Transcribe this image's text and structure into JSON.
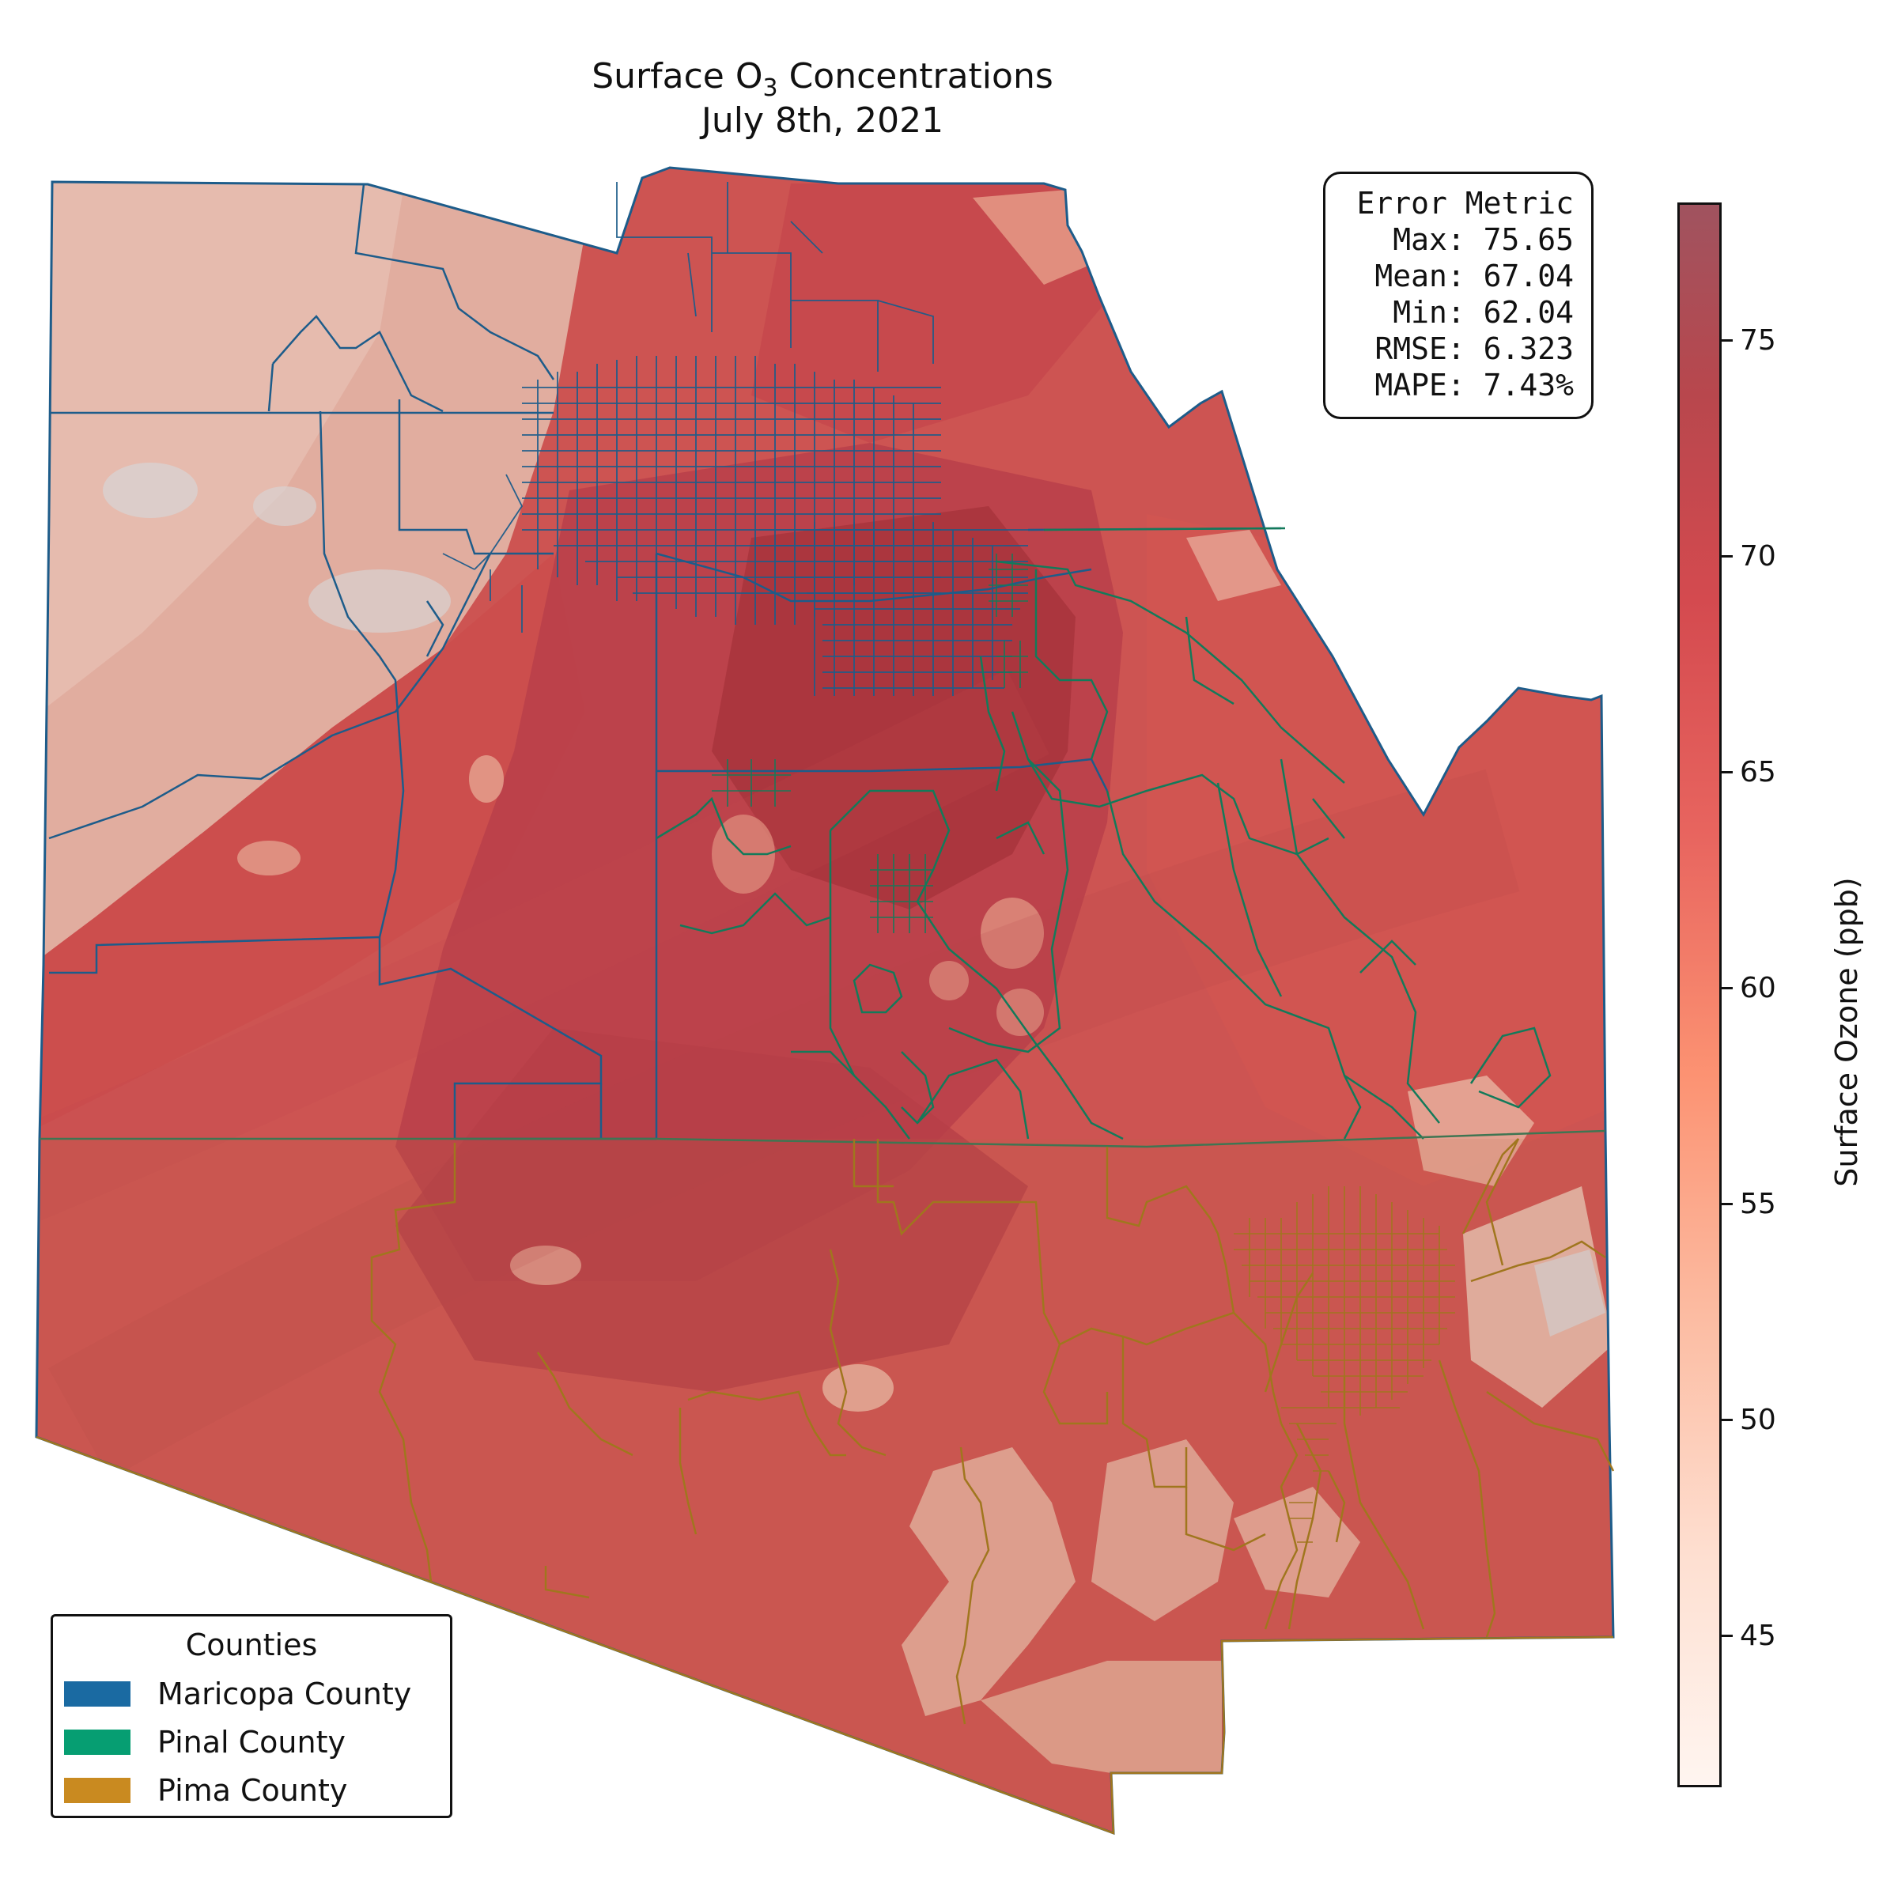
{
  "title": {
    "line1_prefix": "Surface O",
    "line1_subscript": "3",
    "line1_suffix": " Concentrations",
    "line2": "July 8th, 2021"
  },
  "error_metric": {
    "heading": "Error Metric",
    "rows": [
      "  Max: 75.65",
      " Mean: 67.04",
      "  Min: 62.04",
      " RMSE: 6.323",
      " MAPE: 7.43%"
    ]
  },
  "legend": {
    "title": "Counties",
    "items": [
      {
        "label": "Maricopa County",
        "color": "#1a6aa2"
      },
      {
        "label": "Pinal County",
        "color": "#069e72"
      },
      {
        "label": "Pima County",
        "color": "#c98a20"
      }
    ]
  },
  "colorbar": {
    "title": "Surface Ozone (ppb)",
    "range": [
      41.5,
      78.2
    ],
    "ticks": [
      "45",
      "50",
      "55",
      "60",
      "65",
      "70",
      "75"
    ],
    "colormap": "Reds"
  },
  "colors": {
    "maricopa_boundary": "#1d5c8a",
    "pinal_boundary": "#137a5a",
    "pima_boundary": "#a0761e",
    "low_ozone": "#e6b1a3",
    "mid_ozone": "#d45a52",
    "high_ozone": "#a8343c"
  }
}
